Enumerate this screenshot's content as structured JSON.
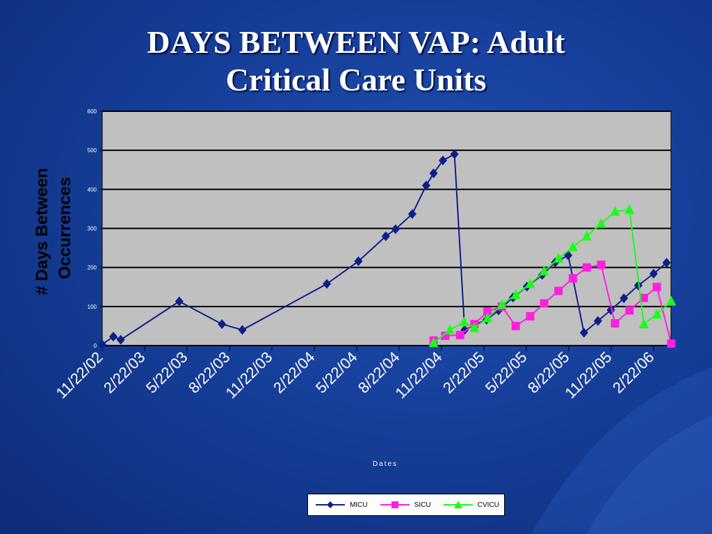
{
  "title_line1": "DAYS BETWEEN VAP: Adult",
  "title_line2": "Critical Care Units",
  "colors": {
    "background": "#163f9a",
    "plot_bg": "#c0c0c0",
    "micu": "#0d1f8a",
    "sicu": "#ff1fe0",
    "cvicu": "#19ff19"
  },
  "chart_data": {
    "type": "line",
    "title": "DAYS BETWEEN VAP: Adult Critical Care Units",
    "xlabel": "Dates",
    "ylabel": "# Days Between Occurrences",
    "x_ticks": [
      "11/22/02",
      "2/22/03",
      "5/22/03",
      "8/22/03",
      "11/22/03",
      "2/22/04",
      "5/22/04",
      "8/22/04",
      "11/22/04",
      "2/22/05",
      "5/22/05",
      "8/22/05",
      "11/22/05",
      "2/22/06"
    ],
    "y_ticks": [
      "0",
      "100",
      "200",
      "300",
      "400",
      "500",
      "600"
    ],
    "ylim": [
      0,
      600
    ],
    "grid": true,
    "legend_position": "bottom",
    "series": [
      {
        "name": "MICU",
        "marker": "diamond",
        "x": [
          "2002-11-22",
          "2002-12-16",
          "2003-01-01",
          "2003-05-07",
          "2003-08-07",
          "2003-09-20",
          "2004-03-20",
          "2004-05-27",
          "2004-07-25",
          "2004-08-15",
          "2004-09-20",
          "2004-10-20",
          "2004-11-05",
          "2004-11-25",
          "2004-12-20",
          "2005-01-11",
          "2005-02-01",
          "2005-02-27",
          "2005-03-25",
          "2005-04-25",
          "2005-05-25",
          "2005-06-27",
          "2005-07-25",
          "2005-08-22",
          "2005-09-25",
          "2005-10-25",
          "2005-11-22",
          "2005-12-20",
          "2006-01-20",
          "2006-02-22",
          "2006-03-22"
        ],
        "values": [
          3,
          23,
          15,
          113,
          55,
          40,
          158,
          216,
          280,
          298,
          337,
          410,
          441,
          474,
          490,
          40,
          53,
          66,
          90,
          123,
          151,
          181,
          213,
          231,
          33,
          63,
          91,
          121,
          154,
          184,
          212
        ]
      },
      {
        "name": "SICU",
        "marker": "square",
        "x": [
          "2004-11-05",
          "2004-11-30",
          "2005-01-01",
          "2005-02-01",
          "2005-03-01",
          "2005-04-01",
          "2005-05-01",
          "2005-06-01",
          "2005-07-01",
          "2005-08-01",
          "2005-09-01",
          "2005-10-01",
          "2005-11-01",
          "2005-12-01",
          "2006-01-01",
          "2006-02-01",
          "2006-03-01",
          "2006-04-01"
        ],
        "values": [
          13,
          25,
          27,
          55,
          87,
          100,
          50,
          75,
          108,
          140,
          172,
          200,
          207,
          57,
          90,
          122,
          150,
          5
        ]
      },
      {
        "name": "CVICU",
        "marker": "triangle",
        "x": [
          "2004-11-05",
          "2004-12-10",
          "2005-01-10",
          "2005-02-01",
          "2005-03-01",
          "2005-04-01",
          "2005-05-01",
          "2005-06-01",
          "2005-07-01",
          "2005-08-01",
          "2005-09-01",
          "2005-10-01",
          "2005-11-01",
          "2005-12-01",
          "2006-01-01",
          "2006-02-01",
          "2006-03-01",
          "2006-04-01"
        ],
        "values": [
          7,
          40,
          60,
          45,
          70,
          105,
          130,
          158,
          190,
          223,
          252,
          280,
          312,
          343,
          348,
          55,
          80,
          113
        ]
      }
    ]
  }
}
